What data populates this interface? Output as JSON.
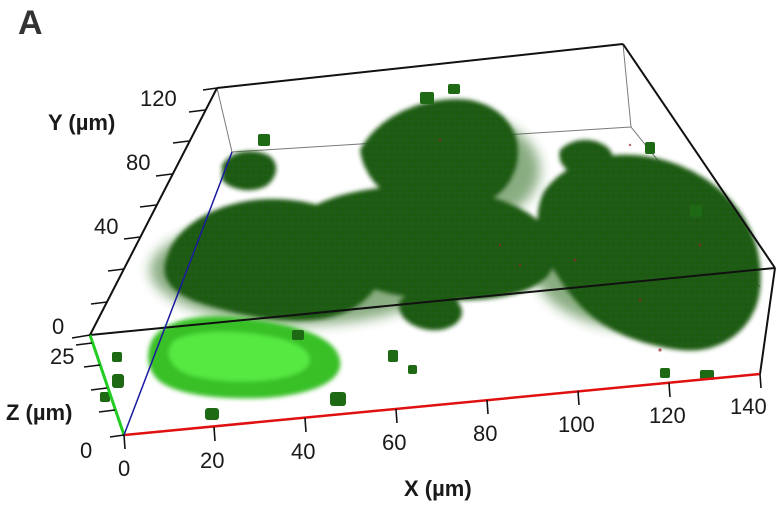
{
  "panel_label": "A",
  "axes": {
    "x": {
      "label": "X (µm)",
      "ticks": [
        "0",
        "20",
        "40",
        "60",
        "80",
        "100",
        "120",
        "140"
      ]
    },
    "y": {
      "label": "Y (µm)",
      "ticks": [
        "0",
        "40",
        "80",
        "120"
      ]
    },
    "z": {
      "label": "Z (µm)",
      "ticks": [
        "0",
        "25"
      ]
    }
  },
  "colors": {
    "x_axis": "#e01010",
    "z_axis": "#22cc22",
    "y_axis": "#1a1aa0",
    "biofilm_dark": "#1e5a14",
    "biofilm_bright": "#3ddc2c",
    "red_fluorescence": "#a02030"
  }
}
